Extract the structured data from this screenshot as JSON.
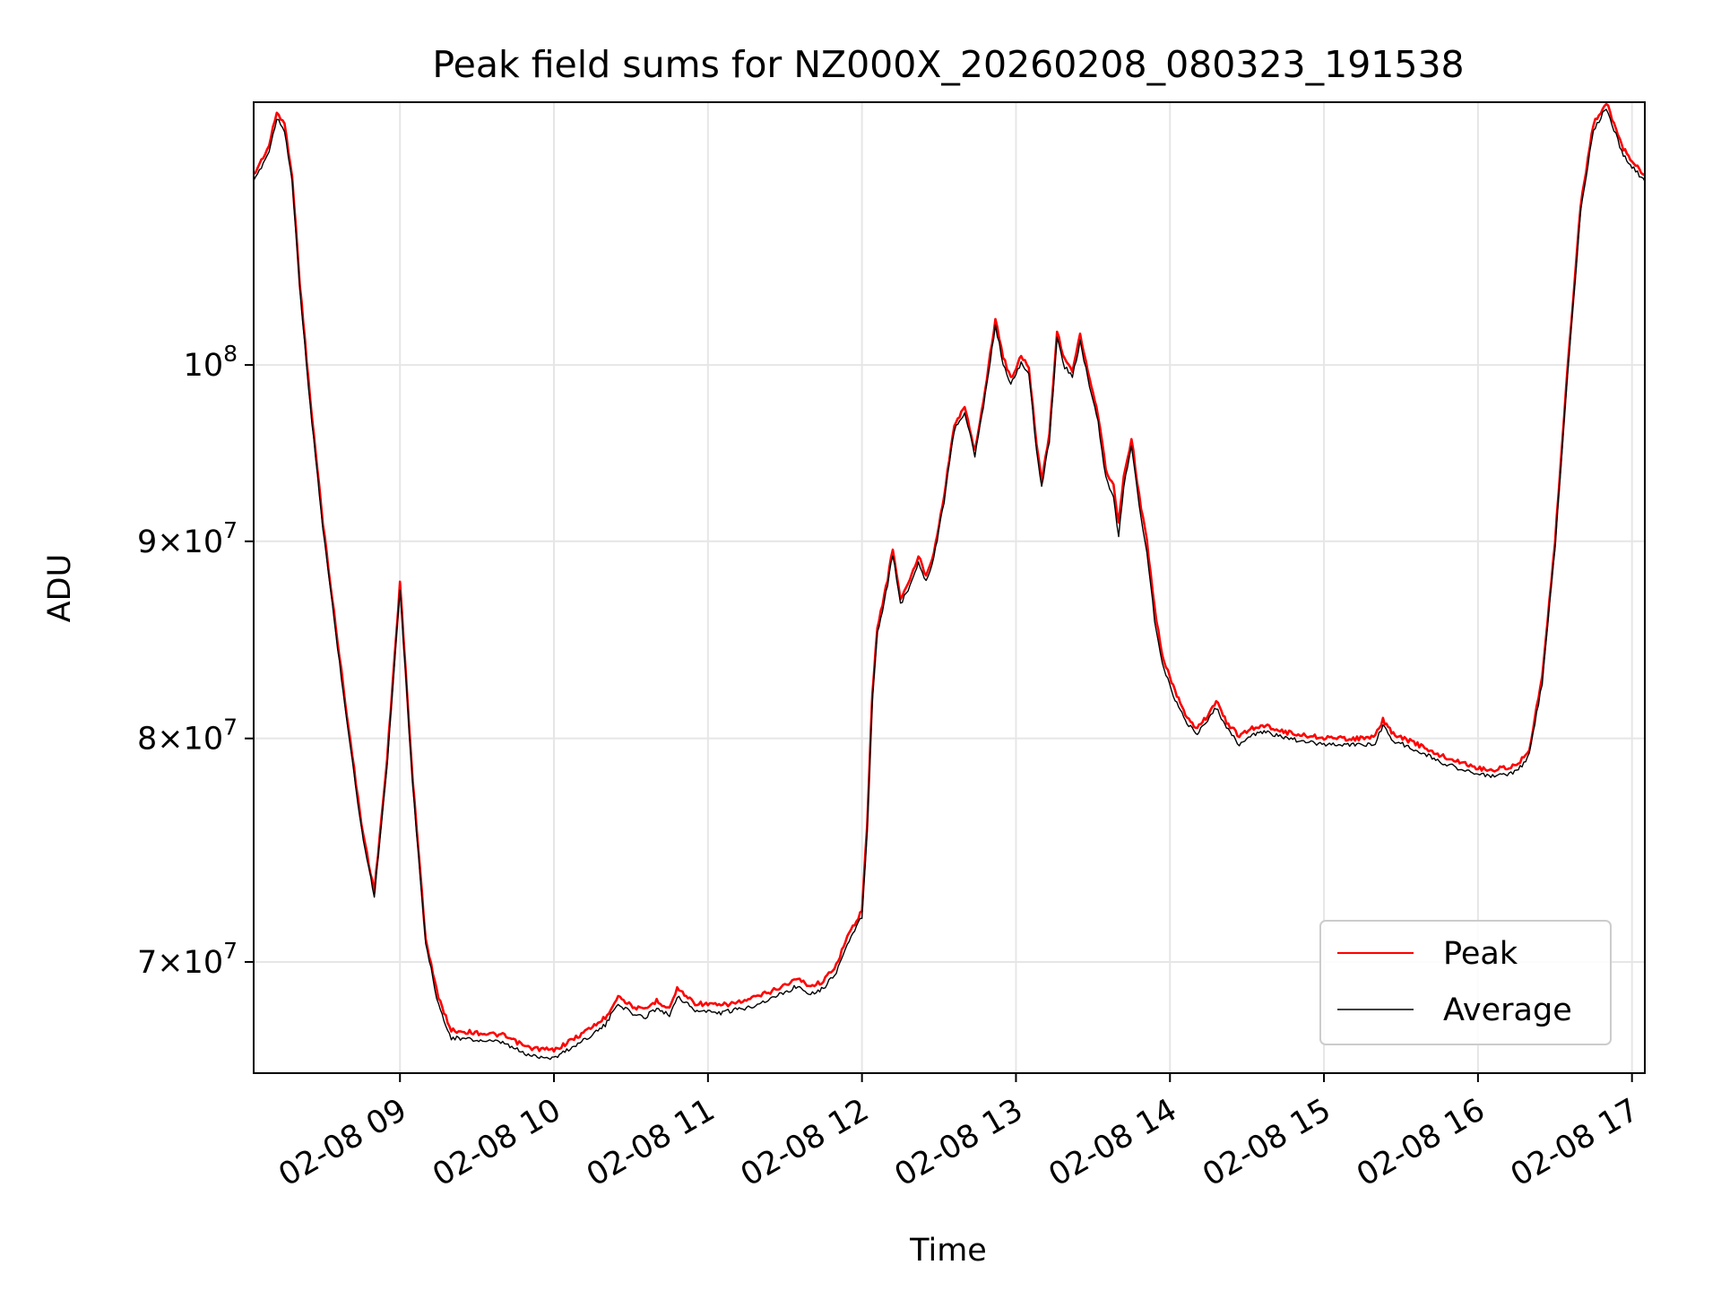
{
  "chart_data": {
    "type": "line",
    "title": "Peak field sums for NZ000X_20260208_080323_191538",
    "xlabel": "Time",
    "ylabel": "ADU",
    "yscale": "log",
    "xlim": [
      "02-08 08:03",
      "02-08 17:05"
    ],
    "ylim": [
      65500000,
      117000000
    ],
    "grid": true,
    "legend_position": "lower-right",
    "x_ticks": [
      {
        "value": "02-08 09:00",
        "label": "02-08 09"
      },
      {
        "value": "02-08 10:00",
        "label": "02-08 10"
      },
      {
        "value": "02-08 11:00",
        "label": "02-08 11"
      },
      {
        "value": "02-08 12:00",
        "label": "02-08 12"
      },
      {
        "value": "02-08 13:00",
        "label": "02-08 13"
      },
      {
        "value": "02-08 14:00",
        "label": "02-08 14"
      },
      {
        "value": "02-08 15:00",
        "label": "02-08 15"
      },
      {
        "value": "02-08 16:00",
        "label": "02-08 16"
      },
      {
        "value": "02-08 17:00",
        "label": "02-08 17"
      }
    ],
    "y_ticks": [
      {
        "value": 70000000,
        "mantissa": "7",
        "base": "×10",
        "exp": "7"
      },
      {
        "value": 80000000,
        "mantissa": "8",
        "base": "×10",
        "exp": "7"
      },
      {
        "value": 90000000,
        "mantissa": "9",
        "base": "×10",
        "exp": "7"
      },
      {
        "value": 100000000,
        "mantissa": "",
        "base": "10",
        "exp": "8"
      }
    ],
    "series": [
      {
        "name": "Peak",
        "color": "#ff0000",
        "points": [
          [
            "02-08 08:03",
            112000000
          ],
          [
            "02-08 08:06",
            113000000
          ],
          [
            "02-08 08:09",
            114000000
          ],
          [
            "02-08 08:12",
            116300000
          ],
          [
            "02-08 08:15",
            115500000
          ],
          [
            "02-08 08:18",
            112000000
          ],
          [
            "02-08 08:21",
            105000000
          ],
          [
            "02-08 08:25",
            98000000
          ],
          [
            "02-08 08:30",
            91000000
          ],
          [
            "02-08 08:35",
            85500000
          ],
          [
            "02-08 08:40",
            80500000
          ],
          [
            "02-08 08:45",
            76000000
          ],
          [
            "02-08 08:50",
            73000000
          ],
          [
            "02-08 08:55",
            79000000
          ],
          [
            "02-08 09:00",
            87800000
          ],
          [
            "02-08 09:05",
            78000000
          ],
          [
            "02-08 09:10",
            71000000
          ],
          [
            "02-08 09:15",
            68500000
          ],
          [
            "02-08 09:20",
            67200000
          ],
          [
            "02-08 09:30",
            67100000
          ],
          [
            "02-08 09:40",
            67000000
          ],
          [
            "02-08 09:50",
            66500000
          ],
          [
            "02-08 10:00",
            66400000
          ],
          [
            "02-08 10:10",
            67000000
          ],
          [
            "02-08 10:20",
            67700000
          ],
          [
            "02-08 10:25",
            68600000
          ],
          [
            "02-08 10:30",
            68200000
          ],
          [
            "02-08 10:35",
            68000000
          ],
          [
            "02-08 10:40",
            68400000
          ],
          [
            "02-08 10:45",
            68100000
          ],
          [
            "02-08 10:48",
            68900000
          ],
          [
            "02-08 10:55",
            68300000
          ],
          [
            "02-08 11:05",
            68200000
          ],
          [
            "02-08 11:15",
            68400000
          ],
          [
            "02-08 11:25",
            68800000
          ],
          [
            "02-08 11:35",
            69300000
          ],
          [
            "02-08 11:40",
            69000000
          ],
          [
            "02-08 11:45",
            69200000
          ],
          [
            "02-08 11:50",
            69900000
          ],
          [
            "02-08 11:55",
            71200000
          ],
          [
            "02-08 12:00",
            72200000
          ],
          [
            "02-08 12:02",
            76000000
          ],
          [
            "02-08 12:04",
            82000000
          ],
          [
            "02-08 12:06",
            85500000
          ],
          [
            "02-08 12:08",
            86700000
          ],
          [
            "02-08 12:10",
            88000000
          ],
          [
            "02-08 12:12",
            89600000
          ],
          [
            "02-08 12:15",
            87000000
          ],
          [
            "02-08 12:18",
            87700000
          ],
          [
            "02-08 12:22",
            89200000
          ],
          [
            "02-08 12:25",
            88200000
          ],
          [
            "02-08 12:28",
            89400000
          ],
          [
            "02-08 12:32",
            92500000
          ],
          [
            "02-08 12:36",
            96500000
          ],
          [
            "02-08 12:40",
            97500000
          ],
          [
            "02-08 12:44",
            95000000
          ],
          [
            "02-08 12:48",
            98500000
          ],
          [
            "02-08 12:52",
            102800000
          ],
          [
            "02-08 12:55",
            100500000
          ],
          [
            "02-08 12:58",
            99200000
          ],
          [
            "02-08 13:02",
            100500000
          ],
          [
            "02-08 13:05",
            99900000
          ],
          [
            "02-08 13:08",
            95500000
          ],
          [
            "02-08 13:10",
            93300000
          ],
          [
            "02-08 13:13",
            96000000
          ],
          [
            "02-08 13:16",
            102000000
          ],
          [
            "02-08 13:19",
            100300000
          ],
          [
            "02-08 13:22",
            99700000
          ],
          [
            "02-08 13:25",
            101800000
          ],
          [
            "02-08 13:28",
            99600000
          ],
          [
            "02-08 13:32",
            97000000
          ],
          [
            "02-08 13:35",
            94000000
          ],
          [
            "02-08 13:38",
            93000000
          ],
          [
            "02-08 13:40",
            91000000
          ],
          [
            "02-08 13:42",
            93500000
          ],
          [
            "02-08 13:45",
            95700000
          ],
          [
            "02-08 13:48",
            92500000
          ],
          [
            "02-08 13:51",
            90000000
          ],
          [
            "02-08 13:54",
            86500000
          ],
          [
            "02-08 13:57",
            84000000
          ],
          [
            "02-08 14:02",
            82300000
          ],
          [
            "02-08 14:06",
            81200000
          ],
          [
            "02-08 14:10",
            80500000
          ],
          [
            "02-08 14:14",
            81000000
          ],
          [
            "02-08 14:18",
            81800000
          ],
          [
            "02-08 14:22",
            80800000
          ],
          [
            "02-08 14:27",
            80100000
          ],
          [
            "02-08 14:32",
            80500000
          ],
          [
            "02-08 14:38",
            80600000
          ],
          [
            "02-08 14:45",
            80300000
          ],
          [
            "02-08 14:55",
            80100000
          ],
          [
            "02-08 15:05",
            80000000
          ],
          [
            "02-08 15:15",
            80000000
          ],
          [
            "02-08 15:20",
            80100000
          ],
          [
            "02-08 15:23",
            80900000
          ],
          [
            "02-08 15:27",
            80200000
          ],
          [
            "02-08 15:35",
            79800000
          ],
          [
            "02-08 15:45",
            79200000
          ],
          [
            "02-08 15:55",
            78800000
          ],
          [
            "02-08 16:00",
            78600000
          ],
          [
            "02-08 16:05",
            78500000
          ],
          [
            "02-08 16:10",
            78600000
          ],
          [
            "02-08 16:15",
            78700000
          ],
          [
            "02-08 16:20",
            79500000
          ],
          [
            "02-08 16:25",
            83000000
          ],
          [
            "02-08 16:30",
            90000000
          ],
          [
            "02-08 16:35",
            100000000
          ],
          [
            "02-08 16:40",
            110000000
          ],
          [
            "02-08 16:45",
            115500000
          ],
          [
            "02-08 16:50",
            117000000
          ],
          [
            "02-08 16:53",
            115500000
          ],
          [
            "02-08 16:56",
            114000000
          ],
          [
            "02-08 17:00",
            113000000
          ],
          [
            "02-08 17:05",
            112000000
          ]
        ]
      },
      {
        "name": "Average",
        "color": "#000000",
        "points": [
          [
            "02-08 08:03",
            111500000
          ],
          [
            "02-08 08:06",
            112600000
          ],
          [
            "02-08 08:09",
            113600000
          ],
          [
            "02-08 08:12",
            115900000
          ],
          [
            "02-08 08:15",
            115100000
          ],
          [
            "02-08 08:18",
            111600000
          ],
          [
            "02-08 08:21",
            104600000
          ],
          [
            "02-08 08:25",
            97600000
          ],
          [
            "02-08 08:30",
            90700000
          ],
          [
            "02-08 08:35",
            85200000
          ],
          [
            "02-08 08:40",
            80200000
          ],
          [
            "02-08 08:45",
            75800000
          ],
          [
            "02-08 08:50",
            72800000
          ],
          [
            "02-08 08:55",
            78800000
          ],
          [
            "02-08 09:00",
            87500000
          ],
          [
            "02-08 09:05",
            77800000
          ],
          [
            "02-08 09:10",
            70800000
          ],
          [
            "02-08 09:15",
            68200000
          ],
          [
            "02-08 09:20",
            66900000
          ],
          [
            "02-08 09:30",
            66800000
          ],
          [
            "02-08 09:40",
            66700000
          ],
          [
            "02-08 09:50",
            66200000
          ],
          [
            "02-08 10:00",
            66100000
          ],
          [
            "02-08 10:10",
            66700000
          ],
          [
            "02-08 10:20",
            67400000
          ],
          [
            "02-08 10:25",
            68300000
          ],
          [
            "02-08 10:30",
            67900000
          ],
          [
            "02-08 10:35",
            67700000
          ],
          [
            "02-08 10:40",
            68100000
          ],
          [
            "02-08 10:45",
            67800000
          ],
          [
            "02-08 10:48",
            68600000
          ],
          [
            "02-08 10:55",
            68000000
          ],
          [
            "02-08 11:05",
            67900000
          ],
          [
            "02-08 11:15",
            68100000
          ],
          [
            "02-08 11:25",
            68500000
          ],
          [
            "02-08 11:35",
            69000000
          ],
          [
            "02-08 11:40",
            68700000
          ],
          [
            "02-08 11:45",
            68900000
          ],
          [
            "02-08 11:50",
            69600000
          ],
          [
            "02-08 11:55",
            70900000
          ],
          [
            "02-08 12:00",
            71900000
          ],
          [
            "02-08 12:02",
            75700000
          ],
          [
            "02-08 12:04",
            81700000
          ],
          [
            "02-08 12:06",
            85200000
          ],
          [
            "02-08 12:08",
            86400000
          ],
          [
            "02-08 12:10",
            87700000
          ],
          [
            "02-08 12:12",
            89300000
          ],
          [
            "02-08 12:15",
            86700000
          ],
          [
            "02-08 12:18",
            87400000
          ],
          [
            "02-08 12:22",
            88900000
          ],
          [
            "02-08 12:25",
            87900000
          ],
          [
            "02-08 12:28",
            89100000
          ],
          [
            "02-08 12:32",
            92200000
          ],
          [
            "02-08 12:36",
            96200000
          ],
          [
            "02-08 12:40",
            97200000
          ],
          [
            "02-08 12:44",
            94700000
          ],
          [
            "02-08 12:48",
            98200000
          ],
          [
            "02-08 12:52",
            102400000
          ],
          [
            "02-08 12:55",
            100100000
          ],
          [
            "02-08 12:58",
            98800000
          ],
          [
            "02-08 13:02",
            100100000
          ],
          [
            "02-08 13:05",
            99500000
          ],
          [
            "02-08 13:08",
            95100000
          ],
          [
            "02-08 13:10",
            92900000
          ],
          [
            "02-08 13:13",
            95600000
          ],
          [
            "02-08 13:16",
            101600000
          ],
          [
            "02-08 13:19",
            99900000
          ],
          [
            "02-08 13:22",
            99300000
          ],
          [
            "02-08 13:25",
            101400000
          ],
          [
            "02-08 13:28",
            99200000
          ],
          [
            "02-08 13:32",
            96600000
          ],
          [
            "02-08 13:35",
            93500000
          ],
          [
            "02-08 13:38",
            92300000
          ],
          [
            "02-08 13:40",
            90300000
          ],
          [
            "02-08 13:42",
            93000000
          ],
          [
            "02-08 13:45",
            95300000
          ],
          [
            "02-08 13:48",
            92000000
          ],
          [
            "02-08 13:51",
            89400000
          ],
          [
            "02-08 13:54",
            85900000
          ],
          [
            "02-08 13:57",
            83600000
          ],
          [
            "02-08 14:02",
            81900000
          ],
          [
            "02-08 14:06",
            80900000
          ],
          [
            "02-08 14:10",
            80200000
          ],
          [
            "02-08 14:14",
            80700000
          ],
          [
            "02-08 14:18",
            81500000
          ],
          [
            "02-08 14:22",
            80500000
          ],
          [
            "02-08 14:27",
            79700000
          ],
          [
            "02-08 14:32",
            80200000
          ],
          [
            "02-08 14:38",
            80300000
          ],
          [
            "02-08 14:45",
            80000000
          ],
          [
            "02-08 14:55",
            79800000
          ],
          [
            "02-08 15:05",
            79700000
          ],
          [
            "02-08 15:15",
            79700000
          ],
          [
            "02-08 15:20",
            79800000
          ],
          [
            "02-08 15:23",
            80600000
          ],
          [
            "02-08 15:27",
            79900000
          ],
          [
            "02-08 15:35",
            79500000
          ],
          [
            "02-08 15:45",
            78900000
          ],
          [
            "02-08 15:55",
            78500000
          ],
          [
            "02-08 16:00",
            78300000
          ],
          [
            "02-08 16:05",
            78200000
          ],
          [
            "02-08 16:10",
            78300000
          ],
          [
            "02-08 16:15",
            78400000
          ],
          [
            "02-08 16:20",
            79200000
          ],
          [
            "02-08 16:25",
            82700000
          ],
          [
            "02-08 16:30",
            89700000
          ],
          [
            "02-08 16:35",
            99600000
          ],
          [
            "02-08 16:40",
            109600000
          ],
          [
            "02-08 16:45",
            115100000
          ],
          [
            "02-08 16:50",
            116600000
          ],
          [
            "02-08 16:53",
            115100000
          ],
          [
            "02-08 16:56",
            113600000
          ],
          [
            "02-08 17:00",
            112600000
          ],
          [
            "02-08 17:05",
            111600000
          ]
        ]
      }
    ]
  }
}
